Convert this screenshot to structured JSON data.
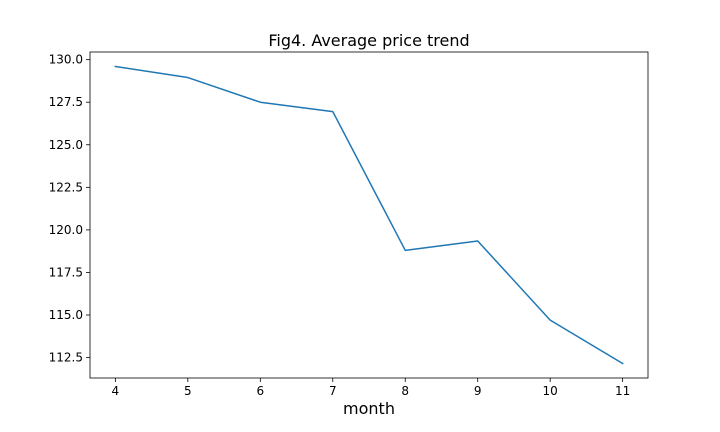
{
  "chart_data": {
    "type": "line",
    "title": "Fig4. Average price trend",
    "xlabel": "month",
    "ylabel": "",
    "x": [
      4,
      5,
      6,
      7,
      8,
      9,
      10,
      11
    ],
    "xticks": [
      "4",
      "5",
      "6",
      "7",
      "8",
      "9",
      "10",
      "11"
    ],
    "xlim": [
      3.65,
      11.35
    ],
    "yticks": [
      "112.5",
      "115.0",
      "117.5",
      "120.0",
      "122.5",
      "125.0",
      "127.5",
      "130.0"
    ],
    "ylim": [
      111.3,
      130.45
    ],
    "grid": false,
    "legend": "none",
    "series": [
      {
        "name": "",
        "color": "#1f77b4",
        "values": [
          129.6,
          128.95,
          127.5,
          126.95,
          118.8,
          119.35,
          114.7,
          112.15
        ]
      }
    ]
  }
}
